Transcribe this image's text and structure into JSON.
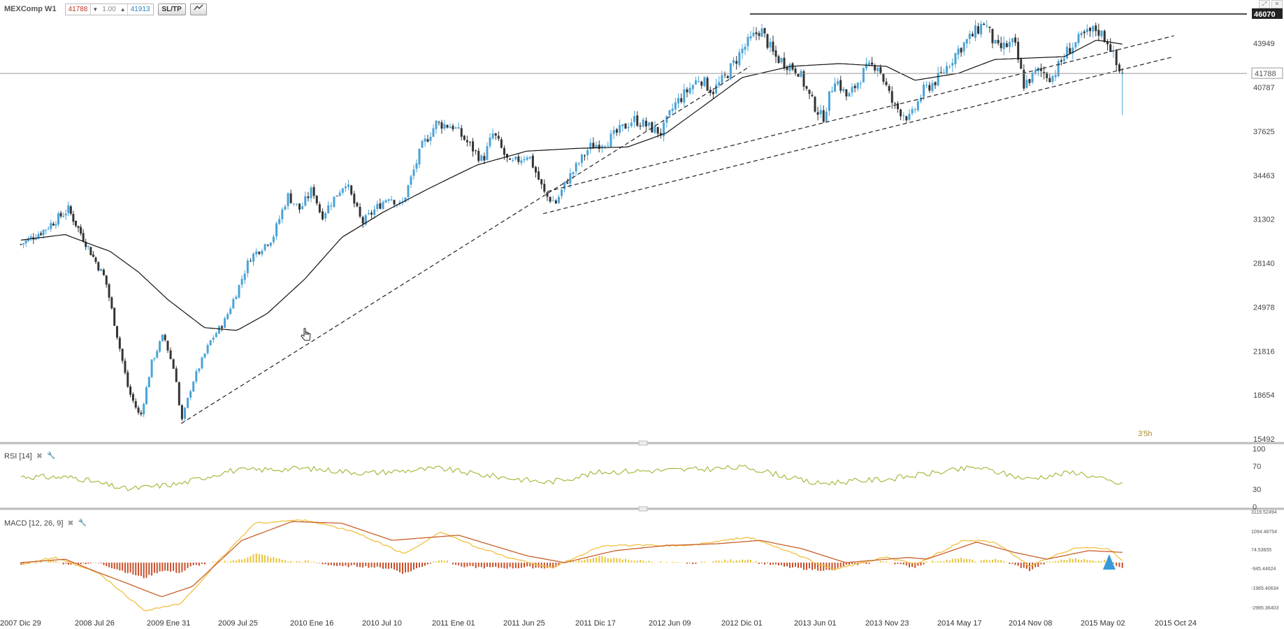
{
  "header": {
    "symbol": "MEXComp W1",
    "bid": "41788",
    "lots": "1.00",
    "ask": "41913",
    "sltp_label": "SL/TP",
    "chart_type_icon": "line-chart-icon"
  },
  "rsi_label": "RSI [14]",
  "macd_label": "MACD [12, 26, 9]",
  "countdown": "3'5h",
  "colors": {
    "bull": "#4aa3d6",
    "bear": "#333333",
    "rsi": "#9ab832",
    "macd_line": "#f0c040",
    "signal_line": "#c8602a",
    "hist_pos": "#e8c43a",
    "hist_neg": "#c8502a"
  },
  "chart_data": [
    {
      "type": "candlestick",
      "xlabel": "",
      "ylabel": "",
      "x_ticks": [
        "2007 Dic 29",
        "2008 Jul 26",
        "2009 Ene 31",
        "2009 Jul 25",
        "2010 Ene 16",
        "2010 Jul 10",
        "2011 Ene 01",
        "2011 Jun 25",
        "2011 Dic 17",
        "2012 Jun 09",
        "2012 Dic 01",
        "2013 Jun 01",
        "2013 Nov 23",
        "2014 May 17",
        "2014 Nov 08",
        "2015 May 02",
        "2015 Oct 24"
      ],
      "ylim": [
        15492,
        46070
      ],
      "y_ticks": [
        15492,
        18654,
        21816,
        24978,
        28140,
        31302,
        34463,
        37625,
        40787,
        43949
      ],
      "current_price": 41788,
      "resistance": 46070,
      "close_anchors": [
        {
          "date": "2007-12-29",
          "close": 29500
        },
        {
          "date": "2008-03-01",
          "close": 30500
        },
        {
          "date": "2008-05-10",
          "close": 32000
        },
        {
          "date": "2008-06-20",
          "close": 30000
        },
        {
          "date": "2008-08-20",
          "close": 27000
        },
        {
          "date": "2008-10-20",
          "close": 19000
        },
        {
          "date": "2008-11-20",
          "close": 17000
        },
        {
          "date": "2008-12-20",
          "close": 21000
        },
        {
          "date": "2009-01-20",
          "close": 23000
        },
        {
          "date": "2009-02-20",
          "close": 20000
        },
        {
          "date": "2009-03-05",
          "close": 16600
        },
        {
          "date": "2009-04-01",
          "close": 19500
        },
        {
          "date": "2009-05-15",
          "close": 22500
        },
        {
          "date": "2009-06-20",
          "close": 24000
        },
        {
          "date": "2009-07-25",
          "close": 26500
        },
        {
          "date": "2009-08-20",
          "close": 28500
        },
        {
          "date": "2009-10-15",
          "close": 30000
        },
        {
          "date": "2009-11-20",
          "close": 33000
        },
        {
          "date": "2009-12-20",
          "close": 32000
        },
        {
          "date": "2010-01-20",
          "close": 33500
        },
        {
          "date": "2010-02-10",
          "close": 31500
        },
        {
          "date": "2010-04-10",
          "close": 34000
        },
        {
          "date": "2010-05-20",
          "close": 31000
        },
        {
          "date": "2010-06-20",
          "close": 32000
        },
        {
          "date": "2010-07-25",
          "close": 33000
        },
        {
          "date": "2010-08-25",
          "close": 32200
        },
        {
          "date": "2010-10-15",
          "close": 36500
        },
        {
          "date": "2010-11-20",
          "close": 38200
        },
        {
          "date": "2011-01-01",
          "close": 38000
        },
        {
          "date": "2011-02-15",
          "close": 36500
        },
        {
          "date": "2011-03-15",
          "close": 35500
        },
        {
          "date": "2011-04-10",
          "close": 37500
        },
        {
          "date": "2011-05-20",
          "close": 35200
        },
        {
          "date": "2011-07-05",
          "close": 36000
        },
        {
          "date": "2011-08-15",
          "close": 33000
        },
        {
          "date": "2011-09-10",
          "close": 32500
        },
        {
          "date": "2011-10-05",
          "close": 34000
        },
        {
          "date": "2011-12-01",
          "close": 36500
        },
        {
          "date": "2012-01-15",
          "close": 37000
        },
        {
          "date": "2012-03-15",
          "close": 38500
        },
        {
          "date": "2012-05-20",
          "close": 37500
        },
        {
          "date": "2012-06-20",
          "close": 39500
        },
        {
          "date": "2012-08-20",
          "close": 41500
        },
        {
          "date": "2012-09-20",
          "close": 40500
        },
        {
          "date": "2012-10-20",
          "close": 41500
        },
        {
          "date": "2012-12-01",
          "close": 43500
        },
        {
          "date": "2013-01-15",
          "close": 45000
        },
        {
          "date": "2013-02-20",
          "close": 43000
        },
        {
          "date": "2013-04-20",
          "close": 42000
        },
        {
          "date": "2013-05-20",
          "close": 40000
        },
        {
          "date": "2013-06-20",
          "close": 38500
        },
        {
          "date": "2013-07-20",
          "close": 41500
        },
        {
          "date": "2013-08-20",
          "close": 40000
        },
        {
          "date": "2013-10-01",
          "close": 42000
        },
        {
          "date": "2013-11-01",
          "close": 42500
        },
        {
          "date": "2013-12-10",
          "close": 39500
        },
        {
          "date": "2014-01-20",
          "close": 38500
        },
        {
          "date": "2014-02-20",
          "close": 40500
        },
        {
          "date": "2014-04-01",
          "close": 41500
        },
        {
          "date": "2014-05-17",
          "close": 43500
        },
        {
          "date": "2014-06-20",
          "close": 44500
        },
        {
          "date": "2014-07-20",
          "close": 45500
        },
        {
          "date": "2014-08-20",
          "close": 43500
        },
        {
          "date": "2014-10-01",
          "close": 44000
        },
        {
          "date": "2014-10-25",
          "close": 41000
        },
        {
          "date": "2014-12-01",
          "close": 42000
        },
        {
          "date": "2015-01-01",
          "close": 41500
        },
        {
          "date": "2015-02-10",
          "close": 43500
        },
        {
          "date": "2015-03-20",
          "close": 44500
        },
        {
          "date": "2015-04-20",
          "close": 45000
        },
        {
          "date": "2015-05-20",
          "close": 44000
        },
        {
          "date": "2015-06-10",
          "close": 42000
        },
        {
          "date": "2015-06-20",
          "close": 41788
        }
      ],
      "moving_average": [
        {
          "date": "2007-12-29",
          "value": 29800
        },
        {
          "date": "2008-05-01",
          "value": 30200
        },
        {
          "date": "2008-09-01",
          "value": 29000
        },
        {
          "date": "2008-11-15",
          "value": 27500
        },
        {
          "date": "2009-02-01",
          "value": 25500
        },
        {
          "date": "2009-05-01",
          "value": 23500
        },
        {
          "date": "2009-07-20",
          "value": 23300
        },
        {
          "date": "2009-10-01",
          "value": 24500
        },
        {
          "date": "2010-01-01",
          "value": 27000
        },
        {
          "date": "2010-04-01",
          "value": 30000
        },
        {
          "date": "2010-07-10",
          "value": 31800
        },
        {
          "date": "2010-11-01",
          "value": 33500
        },
        {
          "date": "2011-03-01",
          "value": 35200
        },
        {
          "date": "2011-07-01",
          "value": 36200
        },
        {
          "date": "2011-11-01",
          "value": 36400
        },
        {
          "date": "2012-03-01",
          "value": 36500
        },
        {
          "date": "2012-06-01",
          "value": 37500
        },
        {
          "date": "2012-09-01",
          "value": 39500
        },
        {
          "date": "2012-12-01",
          "value": 41500
        },
        {
          "date": "2013-04-01",
          "value": 42300
        },
        {
          "date": "2013-08-01",
          "value": 42500
        },
        {
          "date": "2013-11-23",
          "value": 42300
        },
        {
          "date": "2014-02-01",
          "value": 41300
        },
        {
          "date": "2014-05-17",
          "value": 41800
        },
        {
          "date": "2014-08-15",
          "value": 42800
        },
        {
          "date": "2014-11-08",
          "value": 42900
        },
        {
          "date": "2015-02-01",
          "value": 43000
        },
        {
          "date": "2015-04-20",
          "value": 44200
        },
        {
          "date": "2015-06-20",
          "value": 43900
        }
      ],
      "trendlines": [
        {
          "from": {
            "date": "2009-03-05",
            "value": 16600
          },
          "to": {
            "date": "2012-12-20",
            "value": 42300
          }
        },
        {
          "from": {
            "date": "2011-08-20",
            "value": 33300
          },
          "to": {
            "date": "2015-10-20",
            "value": 44500
          }
        },
        {
          "from": {
            "date": "2011-08-10",
            "value": 31700
          },
          "to": {
            "date": "2015-10-20",
            "value": 43000
          }
        }
      ]
    },
    {
      "type": "line",
      "name": "RSI [14]",
      "ylim": [
        0,
        100
      ],
      "y_ticks": [
        0,
        30,
        70,
        100
      ],
      "anchors": [
        {
          "date": "2007-12-29",
          "value": 52
        },
        {
          "date": "2008-06-01",
          "value": 50
        },
        {
          "date": "2008-10-15",
          "value": 30
        },
        {
          "date": "2009-03-05",
          "value": 40
        },
        {
          "date": "2009-07-01",
          "value": 62
        },
        {
          "date": "2010-01-01",
          "value": 66
        },
        {
          "date": "2010-06-01",
          "value": 58
        },
        {
          "date": "2010-12-01",
          "value": 66
        },
        {
          "date": "2011-03-01",
          "value": 56
        },
        {
          "date": "2011-08-20",
          "value": 42
        },
        {
          "date": "2012-01-01",
          "value": 60
        },
        {
          "date": "2012-08-01",
          "value": 64
        },
        {
          "date": "2012-12-15",
          "value": 68
        },
        {
          "date": "2013-06-01",
          "value": 40
        },
        {
          "date": "2013-12-01",
          "value": 48
        },
        {
          "date": "2014-07-01",
          "value": 68
        },
        {
          "date": "2014-11-01",
          "value": 48
        },
        {
          "date": "2015-03-01",
          "value": 60
        },
        {
          "date": "2015-06-20",
          "value": 38
        }
      ]
    },
    {
      "type": "line",
      "name": "MACD [12, 26, 9]",
      "y_ticks": [
        "3119.52494",
        "1094.48754",
        "74.53655",
        "-945.44624",
        "-1965.40634",
        "-2985.36403"
      ],
      "macd_anchors": [
        {
          "date": "2007-12-29",
          "value": -100
        },
        {
          "date": "2008-04-01",
          "value": 300
        },
        {
          "date": "2008-08-01",
          "value": -600
        },
        {
          "date": "2008-12-01",
          "value": -2800
        },
        {
          "date": "2009-03-05",
          "value": -2400
        },
        {
          "date": "2009-06-01",
          "value": 0
        },
        {
          "date": "2009-09-01",
          "value": 2300
        },
        {
          "date": "2010-01-01",
          "value": 2500
        },
        {
          "date": "2010-05-01",
          "value": 1800
        },
        {
          "date": "2010-09-01",
          "value": 500
        },
        {
          "date": "2010-12-01",
          "value": 1800
        },
        {
          "date": "2011-03-01",
          "value": 900
        },
        {
          "date": "2011-06-01",
          "value": 200
        },
        {
          "date": "2011-09-01",
          "value": -300
        },
        {
          "date": "2012-01-01",
          "value": 1000
        },
        {
          "date": "2012-04-01",
          "value": 1000
        },
        {
          "date": "2012-08-01",
          "value": 1000
        },
        {
          "date": "2012-12-15",
          "value": 1500
        },
        {
          "date": "2013-04-01",
          "value": 600
        },
        {
          "date": "2013-07-15",
          "value": -400
        },
        {
          "date": "2013-11-23",
          "value": 300
        },
        {
          "date": "2014-02-01",
          "value": -100
        },
        {
          "date": "2014-06-01",
          "value": 1300
        },
        {
          "date": "2014-08-15",
          "value": 1200
        },
        {
          "date": "2014-11-08",
          "value": -200
        },
        {
          "date": "2015-03-01",
          "value": 900
        },
        {
          "date": "2015-05-20",
          "value": 800
        },
        {
          "date": "2015-06-20",
          "value": 100
        }
      ],
      "signal_anchors": [
        {
          "date": "2007-12-29",
          "value": 0
        },
        {
          "date": "2008-05-01",
          "value": 200
        },
        {
          "date": "2008-10-15",
          "value": -1200
        },
        {
          "date": "2009-01-15",
          "value": -2000
        },
        {
          "date": "2009-04-01",
          "value": -1400
        },
        {
          "date": "2009-08-01",
          "value": 1300
        },
        {
          "date": "2009-12-01",
          "value": 2400
        },
        {
          "date": "2010-04-01",
          "value": 2300
        },
        {
          "date": "2010-08-01",
          "value": 1300
        },
        {
          "date": "2011-01-15",
          "value": 1600
        },
        {
          "date": "2011-07-01",
          "value": 400
        },
        {
          "date": "2011-10-01",
          "value": 0
        },
        {
          "date": "2012-02-01",
          "value": 700
        },
        {
          "date": "2012-06-01",
          "value": 1000
        },
        {
          "date": "2012-10-01",
          "value": 1100
        },
        {
          "date": "2013-01-15",
          "value": 1300
        },
        {
          "date": "2013-05-01",
          "value": 800
        },
        {
          "date": "2013-08-15",
          "value": 0
        },
        {
          "date": "2014-01-15",
          "value": 300
        },
        {
          "date": "2014-03-01",
          "value": 200
        },
        {
          "date": "2014-07-01",
          "value": 1200
        },
        {
          "date": "2014-10-01",
          "value": 600
        },
        {
          "date": "2014-12-20",
          "value": 200
        },
        {
          "date": "2015-04-01",
          "value": 700
        },
        {
          "date": "2015-06-20",
          "value": 600
        }
      ]
    }
  ]
}
